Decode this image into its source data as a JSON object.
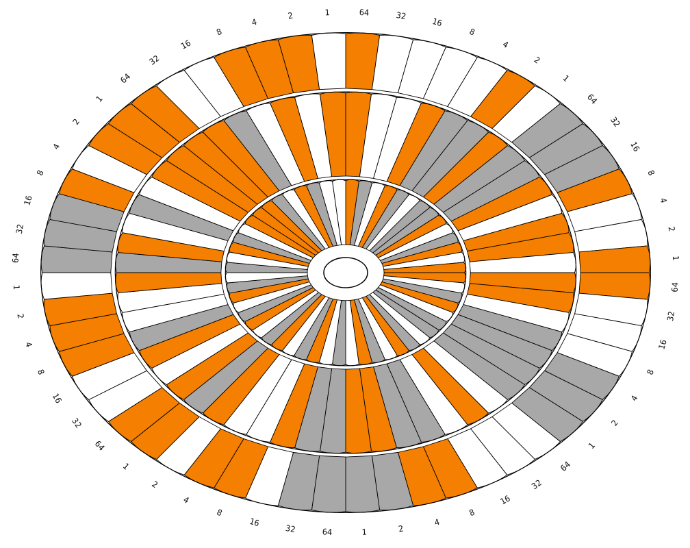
{
  "colors": {
    "off": "#ffffff",
    "orange": "#f47f00",
    "gray": "#a8a8a8",
    "line": "#000000"
  },
  "wheel": {
    "sector_count": 8,
    "bits_per_sector": 7,
    "bit_labels": [
      "64",
      "32",
      "16",
      "8",
      "4",
      "2",
      "1"
    ],
    "ring_names": [
      "inner-ring",
      "middle-ring",
      "outer-ring"
    ],
    "sectors": [
      {
        "name": "sector-1",
        "labels": [
          "64",
          "32",
          "16",
          "8",
          "4",
          "2",
          "1"
        ],
        "rings": [
          [
            "orange",
            "gray",
            "white",
            "orange",
            "gray",
            "white",
            "gray"
          ],
          [
            "orange",
            "white",
            "white",
            "orange",
            "gray",
            "gray",
            "orange"
          ],
          [
            "orange",
            "white",
            "white",
            "white",
            "white",
            "orange",
            "white"
          ]
        ]
      },
      {
        "name": "sector-2",
        "labels": [
          "64",
          "32",
          "16",
          "8",
          "4",
          "2",
          "1"
        ],
        "rings": [
          [
            "gray",
            "orange",
            "white",
            "gray",
            "orange",
            "white",
            "orange"
          ],
          [
            "gray",
            "gray",
            "orange",
            "white",
            "orange",
            "orange",
            "white"
          ],
          [
            "gray",
            "gray",
            "gray",
            "orange",
            "white",
            "white",
            "orange"
          ]
        ]
      },
      {
        "name": "sector-3",
        "labels": [
          "64",
          "32",
          "16",
          "8",
          "4",
          "2",
          "1"
        ],
        "rings": [
          [
            "orange",
            "white",
            "gray",
            "orange",
            "white",
            "gray",
            "gray"
          ],
          [
            "orange",
            "orange",
            "white",
            "gray",
            "gray",
            "gray",
            "gray"
          ],
          [
            "orange",
            "white",
            "white",
            "white",
            "gray",
            "gray",
            "gray"
          ]
        ]
      },
      {
        "name": "sector-4",
        "labels": [
          "64",
          "32",
          "16",
          "8",
          "4",
          "2",
          "1"
        ],
        "rings": [
          [
            "white",
            "gray",
            "orange",
            "white",
            "gray",
            "orange",
            "white"
          ],
          [
            "white",
            "orange",
            "white",
            "gray",
            "gray",
            "orange",
            "orange"
          ],
          [
            "white",
            "white",
            "white",
            "orange",
            "orange",
            "gray",
            "gray"
          ]
        ]
      },
      {
        "name": "sector-5",
        "labels": [
          "64",
          "32",
          "16",
          "8",
          "4",
          "2",
          "1"
        ],
        "rings": [
          [
            "gray",
            "white",
            "orange",
            "gray",
            "white",
            "orange",
            "gray"
          ],
          [
            "gray",
            "gray",
            "orange",
            "white",
            "white",
            "orange",
            "gray"
          ],
          [
            "gray",
            "gray",
            "white",
            "orange",
            "orange",
            "white",
            "orange"
          ]
        ]
      },
      {
        "name": "sector-6",
        "labels": [
          "64",
          "32",
          "16",
          "8",
          "4",
          "2",
          "1"
        ],
        "rings": [
          [
            "white",
            "orange",
            "gray",
            "white",
            "orange",
            "gray",
            "white"
          ],
          [
            "orange",
            "white",
            "orange",
            "gray",
            "white",
            "white",
            "orange"
          ],
          [
            "orange",
            "white",
            "white",
            "orange",
            "orange",
            "orange",
            "white"
          ]
        ]
      },
      {
        "name": "sector-7",
        "labels": [
          "64",
          "32",
          "16",
          "8",
          "4",
          "2",
          "1"
        ],
        "rings": [
          [
            "gray",
            "white",
            "orange",
            "gray",
            "white",
            "orange",
            "orange"
          ],
          [
            "gray",
            "orange",
            "white",
            "gray",
            "white",
            "orange",
            "orange"
          ],
          [
            "gray",
            "gray",
            "gray",
            "orange",
            "white",
            "orange",
            "orange"
          ]
        ]
      },
      {
        "name": "sector-8",
        "labels": [
          "64",
          "32",
          "16",
          "8",
          "4",
          "2",
          "1"
        ],
        "rings": [
          [
            "orange",
            "gray",
            "white",
            "orange",
            "gray",
            "white",
            "white"
          ],
          [
            "orange",
            "orange",
            "gray",
            "white",
            "orange",
            "white",
            "orange"
          ],
          [
            "orange",
            "white",
            "white",
            "orange",
            "orange",
            "orange",
            "white"
          ]
        ]
      }
    ]
  }
}
